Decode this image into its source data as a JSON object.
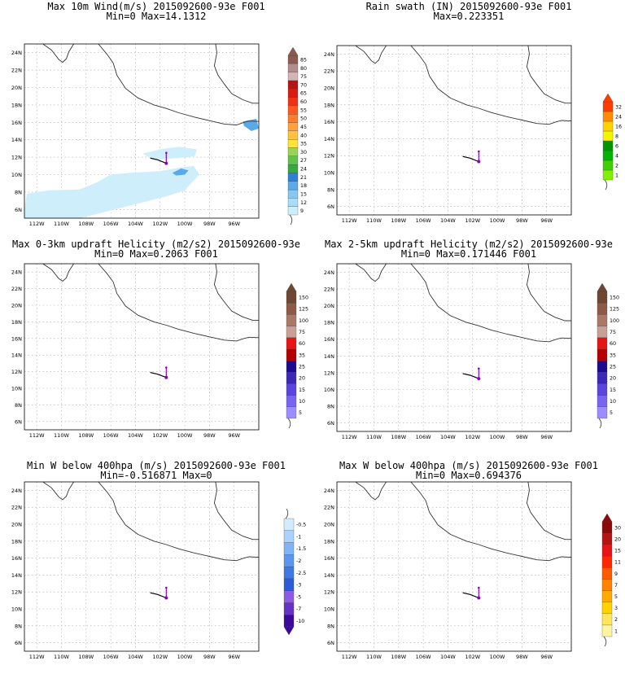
{
  "panels": [
    {
      "title1": "Max 10m Wind(m/s) 2015092600-93e F001",
      "title2": "Min=0 Max=14.1312",
      "colorbar": {
        "labels": [
          "9",
          "12",
          "15",
          "18",
          "21",
          "24",
          "27",
          "30",
          "35",
          "40",
          "45",
          "50",
          "55",
          "60",
          "65",
          "70",
          "75",
          "80",
          "85"
        ],
        "colors": [
          "#cdeefa",
          "#a9dcf7",
          "#88c7f0",
          "#5aa9e8",
          "#2e7fd7",
          "#35a83e",
          "#5fc24a",
          "#9ad35a",
          "#ffe43c",
          "#ffc23c",
          "#ffa03c",
          "#ff7d2a",
          "#ff5a1e",
          "#f03214",
          "#d71e0f",
          "#b41414",
          "#d7b4b4",
          "#b48c8c",
          "#8c5a50"
        ]
      }
    },
    {
      "title1": "Rain swath (IN) 2015092600-93e F001",
      "title2": "Max=0.223351",
      "colorbar": {
        "labels": [
          "1",
          "2",
          "4",
          "6",
          "8",
          "16",
          "24",
          "32"
        ],
        "colors": [
          "#82f000",
          "#40d000",
          "#00b400",
          "#009600",
          "#f5f500",
          "#ffd200",
          "#ff8c00",
          "#ff3c00"
        ]
      }
    },
    {
      "title1": "Max 0-3km updraft Helicity (m2/s2) 2015092600-93e",
      "title2": "Min=0 Max=0.2063 F001",
      "colorbar": {
        "labels": [
          "5",
          "10",
          "15",
          "20",
          "25",
          "35",
          "60",
          "75",
          "100",
          "125",
          "150"
        ],
        "colors": [
          "#9b8cff",
          "#7864f0",
          "#5a46dc",
          "#3c28b4",
          "#1e0a8c",
          "#b40000",
          "#e61414",
          "#c8a096",
          "#aa7864",
          "#8c5a46",
          "#6e4632"
        ]
      }
    },
    {
      "title1": "Max 2-5km updraft Helicity (m2/s2) 2015092600-93e",
      "title2": "Min=0 Max=0.171446 F001",
      "colorbar": {
        "labels": [
          "5",
          "10",
          "15",
          "20",
          "25",
          "35",
          "60",
          "75",
          "100",
          "125",
          "150"
        ],
        "colors": [
          "#9b8cff",
          "#7864f0",
          "#5a46dc",
          "#3c28b4",
          "#1e0a8c",
          "#b40000",
          "#e61414",
          "#c8a096",
          "#aa7864",
          "#8c5a46",
          "#6e4632"
        ]
      }
    },
    {
      "title1": "Min W below 400hpa (m/s) 2015092600-93e F001",
      "title2": "Min=-0.516871 Max=0",
      "colorbar": {
        "labels": [
          "-10",
          "-7",
          "-5",
          "-3",
          "-2.5",
          "-2",
          "-1.5",
          "-1",
          "-0.5"
        ],
        "colors": [
          "#3c0a9b",
          "#6432c8",
          "#8c5ae6",
          "#2e5ad7",
          "#3c78e6",
          "#5a96f0",
          "#82b4f5",
          "#aad2fa",
          "#d2ebfd"
        ]
      }
    },
    {
      "title1": "Max W below 400hpa (m/s) 2015092600-93e F001",
      "title2": "Min=0 Max=0.694376",
      "colorbar": {
        "labels": [
          "1",
          "2",
          "3",
          "5",
          "7",
          "9",
          "11",
          "15",
          "20",
          "30"
        ],
        "colors": [
          "#fff5a0",
          "#ffe65a",
          "#ffd200",
          "#ffaa00",
          "#ff8200",
          "#ff5a00",
          "#ff2800",
          "#e61414",
          "#b41414",
          "#8c0a0a"
        ]
      }
    }
  ],
  "x_tick_labels": [
    "112W",
    "110W",
    "108W",
    "106W",
    "104W",
    "102W",
    "100W",
    "98W",
    "96W"
  ],
  "y_tick_labels": [
    "6N",
    "8N",
    "10N",
    "12N",
    "14N",
    "16N",
    "18N",
    "20N",
    "22N",
    "24N"
  ],
  "track": {
    "line_color": "#000000",
    "marker_color": "#8b00d0"
  },
  "chart_data": [
    {
      "type": "heatmap",
      "title": "Max 10m Wind(m/s) 2015092600-93e F001",
      "subtitle": "Min=0 Max=14.1312",
      "x_range": [
        "113W",
        "94W"
      ],
      "y_range": [
        "5N",
        "25N"
      ],
      "grid": true,
      "legend_position": "right",
      "levels": [
        9,
        12,
        15,
        18,
        21,
        24,
        27,
        30,
        35,
        40,
        45,
        50,
        55,
        60,
        65,
        70,
        75,
        80,
        85
      ]
    },
    {
      "type": "heatmap",
      "title": "Rain swath (IN) 2015092600-93e F001",
      "subtitle": "Max=0.223351",
      "x_range": [
        "113W",
        "94W"
      ],
      "y_range": [
        "5N",
        "25N"
      ],
      "grid": true,
      "legend_position": "right",
      "levels": [
        1,
        2,
        4,
        6,
        8,
        16,
        24,
        32
      ]
    },
    {
      "type": "heatmap",
      "title": "Max 0-3km updraft Helicity (m2/s2) 2015092600-93e",
      "subtitle": "Min=0 Max=0.2063 F001",
      "x_range": [
        "113W",
        "94W"
      ],
      "y_range": [
        "5N",
        "25N"
      ],
      "grid": true,
      "legend_position": "right",
      "levels": [
        5,
        10,
        15,
        20,
        25,
        35,
        60,
        75,
        100,
        125,
        150
      ]
    },
    {
      "type": "heatmap",
      "title": "Max 2-5km updraft Helicity (m2/s2) 2015092600-93e",
      "subtitle": "Min=0 Max=0.171446 F001",
      "x_range": [
        "113W",
        "94W"
      ],
      "y_range": [
        "5N",
        "25N"
      ],
      "grid": true,
      "legend_position": "right",
      "levels": [
        5,
        10,
        15,
        20,
        25,
        35,
        60,
        75,
        100,
        125,
        150
      ]
    },
    {
      "type": "heatmap",
      "title": "Min W below 400hpa (m/s) 2015092600-93e F001",
      "subtitle": "Min=-0.516871 Max=0",
      "x_range": [
        "113W",
        "94W"
      ],
      "y_range": [
        "5N",
        "25N"
      ],
      "grid": true,
      "legend_position": "right",
      "levels": [
        -10,
        -7,
        -5,
        -3,
        -2.5,
        -2,
        -1.5,
        -1,
        -0.5
      ]
    },
    {
      "type": "heatmap",
      "title": "Max W below 400hpa (m/s) 2015092600-93e F001",
      "subtitle": "Min=0 Max=0.694376",
      "x_range": [
        "113W",
        "94W"
      ],
      "y_range": [
        "5N",
        "25N"
      ],
      "grid": true,
      "legend_position": "right",
      "levels": [
        1,
        2,
        3,
        5,
        7,
        9,
        11,
        15,
        20,
        30
      ]
    }
  ]
}
